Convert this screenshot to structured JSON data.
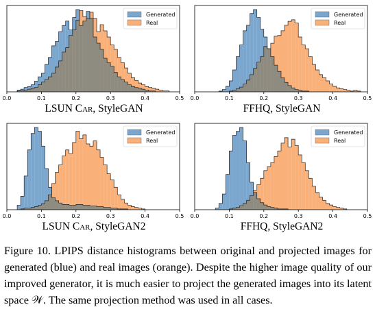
{
  "colors": {
    "generated": "#7ba7cf",
    "real": "#f9b079",
    "overlap": "#8e8b80"
  },
  "caption": {
    "text": "Figure 10. LPIPS distance histograms between original and projected images for generated (blue) and real images (orange). Despite the higher image quality of our improved generator, it is much easier to project the generated images into its latent space 𝒲. The same projection method was used in all cases."
  },
  "chart_data": [
    {
      "type": "histogram",
      "title_main": "LSUN C",
      "title_smallcaps": "ar",
      "title_suffix": ", StyleGAN",
      "xlim": [
        0.0,
        0.5
      ],
      "xticks": [
        "0.0",
        "0.1",
        "0.2",
        "0.3",
        "0.4",
        "0.5"
      ],
      "legend": {
        "placement": "top-right",
        "entries": [
          "Generated",
          "Real"
        ]
      },
      "bin_width": 0.01,
      "series": [
        {
          "name": "Generated",
          "start": 0.03,
          "values": [
            2,
            3,
            5,
            6,
            8,
            12,
            17,
            21,
            31,
            39,
            52,
            57,
            68,
            75,
            80,
            70,
            84,
            93,
            75,
            80,
            91,
            83,
            62,
            55,
            48,
            38,
            33,
            29,
            22,
            17,
            14,
            11,
            8,
            6,
            5,
            4,
            3,
            2,
            1,
            1
          ]
        },
        {
          "name": "Real",
          "start": 0.03,
          "values": [
            1,
            1,
            2,
            3,
            4,
            5,
            8,
            11,
            14,
            17,
            21,
            28,
            35,
            45,
            50,
            64,
            70,
            81,
            92,
            85,
            83,
            90,
            83,
            68,
            76,
            69,
            62,
            53,
            48,
            39,
            33,
            27,
            21,
            16,
            13,
            10,
            8,
            6,
            5,
            4,
            3,
            2,
            1,
            1
          ]
        }
      ]
    },
    {
      "type": "histogram",
      "title_main": "FFHQ, StyleGAN",
      "xlim": [
        0.0,
        0.5
      ],
      "xticks": [
        "0.0",
        "0.1",
        "0.2",
        "0.3",
        "0.4",
        "0.5"
      ],
      "legend": {
        "placement": "top-right",
        "entries": [
          "Generated",
          "Real"
        ]
      },
      "bin_width": 0.01,
      "series": [
        {
          "name": "Generated",
          "start": 0.07,
          "values": [
            1,
            3,
            7,
            14,
            28,
            45,
            60,
            78,
            85,
            100,
            105,
            95,
            80,
            70,
            55,
            45,
            34,
            26,
            18,
            12,
            8,
            5,
            3,
            2,
            1,
            1
          ]
        },
        {
          "name": "Real",
          "start": 0.1,
          "values": [
            1,
            2,
            4,
            6,
            10,
            15,
            22,
            30,
            38,
            45,
            58,
            55,
            62,
            71,
            72,
            78,
            85,
            90,
            92,
            88,
            70,
            60,
            55,
            45,
            35,
            28,
            22,
            18,
            14,
            10,
            7,
            5,
            4,
            3,
            2,
            1,
            2,
            1
          ]
        }
      ]
    },
    {
      "type": "histogram",
      "title_main": "LSUN C",
      "title_smallcaps": "ar",
      "title_suffix": ", StyleGAN2",
      "xlim": [
        0.0,
        0.5
      ],
      "xticks": [
        "0.0",
        "0.1",
        "0.2",
        "0.3",
        "0.4",
        "0.5"
      ],
      "legend": {
        "placement": "top-right",
        "entries": [
          "Generated",
          "Real"
        ]
      },
      "bin_width": 0.01,
      "series": [
        {
          "name": "Generated",
          "start": 0.03,
          "values": [
            6,
            18,
            45,
            80,
            102,
            110,
            105,
            85,
            55,
            30,
            16,
            12,
            9,
            7,
            7,
            6,
            6,
            7,
            7,
            6,
            6,
            5,
            5,
            4,
            4,
            3,
            3,
            2,
            2,
            1,
            1,
            1
          ]
        },
        {
          "name": "Real",
          "start": 0.04,
          "values": [
            1,
            2,
            2,
            3,
            4,
            6,
            8,
            12,
            20,
            35,
            50,
            60,
            72,
            80,
            75,
            90,
            105,
            95,
            100,
            88,
            85,
            92,
            80,
            70,
            60,
            48,
            40,
            30,
            20,
            14,
            9,
            6,
            4,
            3,
            2,
            1
          ]
        }
      ]
    },
    {
      "type": "histogram",
      "title_main": "FFHQ, StyleGAN2",
      "xlim": [
        0.0,
        0.5
      ],
      "xticks": [
        "0.0",
        "0.1",
        "0.2",
        "0.3",
        "0.4",
        "0.5"
      ],
      "legend": {
        "placement": "top-right",
        "entries": [
          "Generated",
          "Real"
        ]
      },
      "bin_width": 0.01,
      "series": [
        {
          "name": "Generated",
          "start": 0.06,
          "values": [
            2,
            8,
            20,
            45,
            75,
            95,
            100,
            105,
            88,
            60,
            35,
            22,
            14,
            9,
            6,
            4,
            3,
            2,
            1,
            1,
            1
          ]
        },
        {
          "name": "Real",
          "start": 0.1,
          "values": [
            1,
            2,
            3,
            5,
            8,
            12,
            18,
            25,
            32,
            40,
            50,
            55,
            60,
            68,
            75,
            85,
            92,
            80,
            90,
            82,
            70,
            60,
            50,
            40,
            30,
            22,
            16,
            12,
            8,
            6,
            4,
            3,
            2,
            1
          ]
        }
      ]
    }
  ]
}
